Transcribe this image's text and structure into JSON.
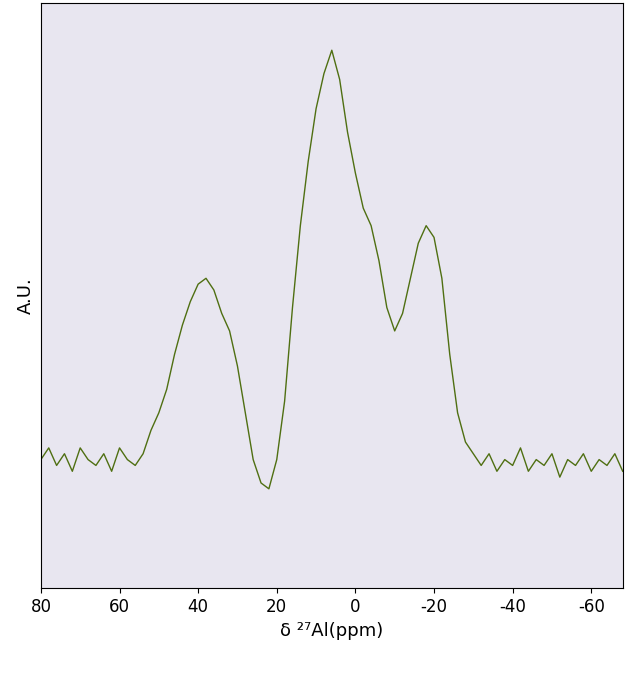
{
  "chart_data": {
    "type": "line",
    "x_label": "δ ²⁷Al(ppm)",
    "y_label": "A.U.",
    "x": [
      80,
      78,
      76,
      74,
      72,
      70,
      68,
      66,
      64,
      62,
      60,
      58,
      56,
      54,
      52,
      50,
      48,
      46,
      44,
      42,
      40,
      38,
      36,
      34,
      32,
      30,
      28,
      26,
      24,
      22,
      20,
      18,
      16,
      14,
      12,
      10,
      8,
      6,
      4,
      2,
      0,
      -2,
      -4,
      -6,
      -8,
      -10,
      -12,
      -14,
      -16,
      -18,
      -20,
      -22,
      -24,
      -26,
      -28,
      -30,
      -32,
      -34,
      -36,
      -38,
      -40,
      -42,
      -44,
      -46,
      -48,
      -50,
      -52,
      -54,
      -56,
      -58,
      -60,
      -62,
      -64,
      -66,
      -68
    ],
    "values": [
      22,
      24,
      21,
      23,
      20,
      24,
      22,
      21,
      23,
      20,
      24,
      22,
      21,
      23,
      27,
      30,
      34,
      40,
      45,
      49,
      52,
      53,
      51,
      47,
      44,
      38,
      30,
      22,
      18,
      17,
      22,
      32,
      48,
      62,
      73,
      82,
      88,
      92,
      87,
      78,
      71,
      65,
      62,
      56,
      48,
      44,
      47,
      53,
      59,
      62,
      60,
      53,
      40,
      30,
      25,
      23,
      21,
      23,
      20,
      22,
      21,
      24,
      20,
      22,
      21,
      23,
      19,
      22,
      21,
      23,
      20,
      22,
      21,
      23,
      20
    ],
    "color": "#4f6f12",
    "xlim": [
      80,
      -68
    ],
    "xticks": [
      80,
      60,
      40,
      20,
      0,
      -20,
      -40,
      -60
    ],
    "ylim": [
      0,
      100
    ],
    "yticks": [],
    "tick_labels": "x",
    "grid": false
  }
}
